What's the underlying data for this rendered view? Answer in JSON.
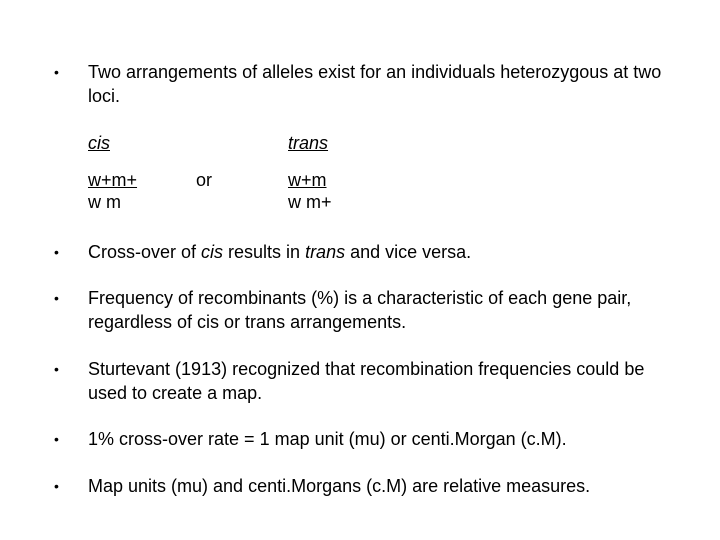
{
  "bullets": [
    "Two arrangements of alleles exist for an individuals heterozygous at two loci.",
    "",
    "",
    "Frequency of recombinants (%) is a characteristic of each gene pair, regardless of cis or trans arrangements.",
    "Sturtevant (1913) recognized that recombination frequencies could be used to create a map.",
    "1% cross-over rate = 1 map unit (mu) or centi.Morgan (c.M).",
    "Map units (mu) and centi.Morgans (c.M) are relative measures."
  ],
  "crossover_pre": "Cross-over of ",
  "crossover_cis": "cis",
  "crossover_mid": " results in ",
  "crossover_trans": "trans",
  "crossover_post": " and vice versa.",
  "arr": {
    "cis_label": "cis",
    "trans_label": "trans",
    "or_label": "or",
    "cis_line1": "w+m+",
    "cis_line2": "w  m",
    "trans_line1": "w+m",
    "trans_line2": "w m+"
  },
  "style": {
    "font_family": "Trebuchet MS, Segoe UI, Tahoma, sans-serif",
    "font_size_pt": 14,
    "text_color": "#000000",
    "background_color": "#ffffff",
    "bullet_glyph": "•"
  }
}
